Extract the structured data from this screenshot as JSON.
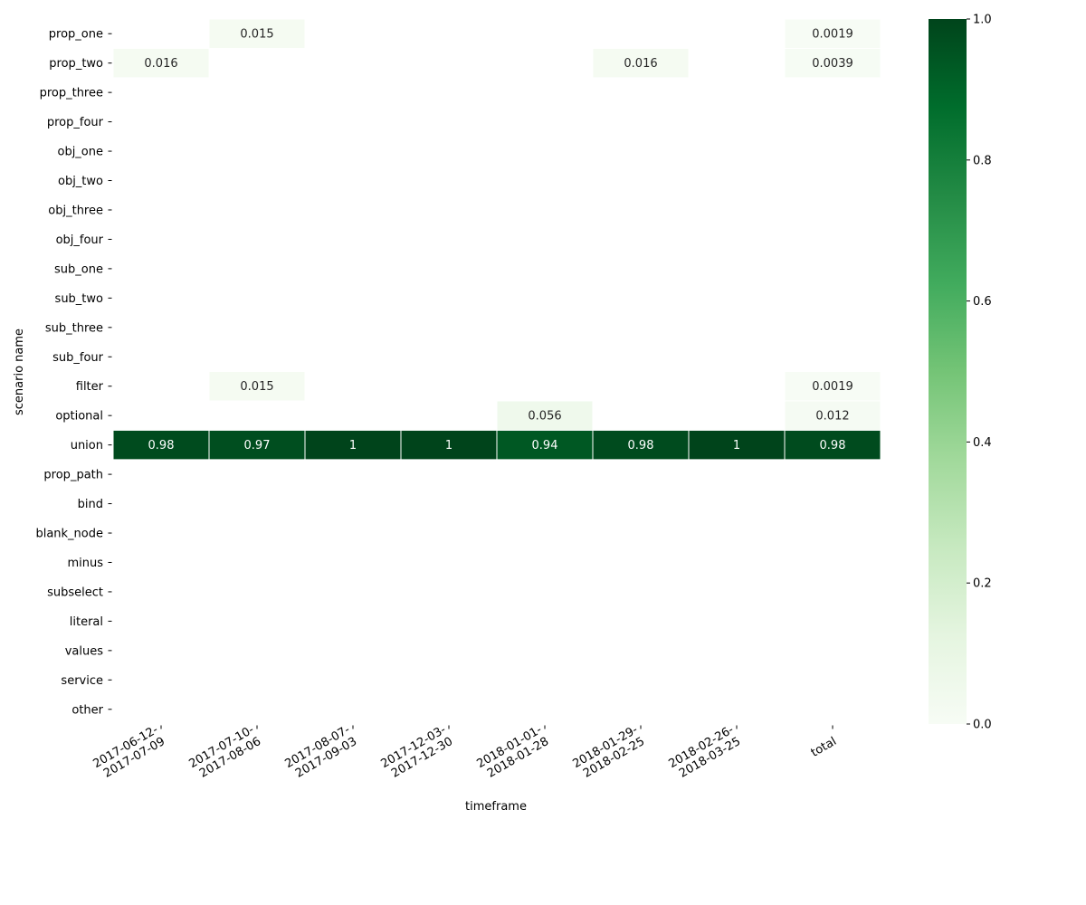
{
  "chart_data": {
    "type": "heatmap",
    "title": "",
    "xlabel": "timeframe",
    "ylabel": "scenario name",
    "x_categories": [
      [
        "2017-06-12-",
        "2017-07-09"
      ],
      [
        "2017-07-10-",
        "2017-08-06"
      ],
      [
        "2017-08-07-",
        "2017-09-03"
      ],
      [
        "2017-12-03-",
        "2017-12-30"
      ],
      [
        "2018-01-01-",
        "2018-01-28"
      ],
      [
        "2018-01-29-",
        "2018-02-25"
      ],
      [
        "2018-02-26-",
        "2018-03-25"
      ],
      [
        "total"
      ]
    ],
    "y_categories": [
      "prop_one",
      "prop_two",
      "prop_three",
      "prop_four",
      "obj_one",
      "obj_two",
      "obj_three",
      "obj_four",
      "sub_one",
      "sub_two",
      "sub_three",
      "sub_four",
      "filter",
      "optional",
      "union",
      "prop_path",
      "bind",
      "blank_node",
      "minus",
      "subselect",
      "literal",
      "values",
      "service",
      "other"
    ],
    "cells": [
      {
        "row": 0,
        "col": 1,
        "value": 0.015,
        "label": "0.015"
      },
      {
        "row": 0,
        "col": 7,
        "value": 0.0019,
        "label": "0.0019"
      },
      {
        "row": 1,
        "col": 0,
        "value": 0.016,
        "label": "0.016"
      },
      {
        "row": 1,
        "col": 5,
        "value": 0.016,
        "label": "0.016"
      },
      {
        "row": 1,
        "col": 7,
        "value": 0.0039,
        "label": "0.0039"
      },
      {
        "row": 12,
        "col": 1,
        "value": 0.015,
        "label": "0.015"
      },
      {
        "row": 12,
        "col": 7,
        "value": 0.0019,
        "label": "0.0019"
      },
      {
        "row": 13,
        "col": 4,
        "value": 0.056,
        "label": "0.056"
      },
      {
        "row": 13,
        "col": 7,
        "value": 0.012,
        "label": "0.012"
      },
      {
        "row": 14,
        "col": 0,
        "value": 0.98,
        "label": "0.98"
      },
      {
        "row": 14,
        "col": 1,
        "value": 0.97,
        "label": "0.97"
      },
      {
        "row": 14,
        "col": 2,
        "value": 1.0,
        "label": "1"
      },
      {
        "row": 14,
        "col": 3,
        "value": 1.0,
        "label": "1"
      },
      {
        "row": 14,
        "col": 4,
        "value": 0.94,
        "label": "0.94"
      },
      {
        "row": 14,
        "col": 5,
        "value": 0.98,
        "label": "0.98"
      },
      {
        "row": 14,
        "col": 6,
        "value": 1.0,
        "label": "1"
      },
      {
        "row": 14,
        "col": 7,
        "value": 0.98,
        "label": "0.98"
      }
    ],
    "colorbar": {
      "range": [
        0.0,
        1.0
      ],
      "ticks": [
        {
          "value": 0.0,
          "label": "0.0"
        },
        {
          "value": 0.2,
          "label": "0.2"
        },
        {
          "value": 0.4,
          "label": "0.4"
        },
        {
          "value": 0.6,
          "label": "0.6"
        },
        {
          "value": 0.8,
          "label": "0.8"
        },
        {
          "value": 1.0,
          "label": "1.0"
        }
      ],
      "colormap": "Greens",
      "colors": [
        "#f7fcf5",
        "#e5f5e0",
        "#c7e9c0",
        "#a1d99b",
        "#74c476",
        "#41ab5d",
        "#238b45",
        "#006d2c",
        "#00441b"
      ]
    },
    "grid": false
  }
}
